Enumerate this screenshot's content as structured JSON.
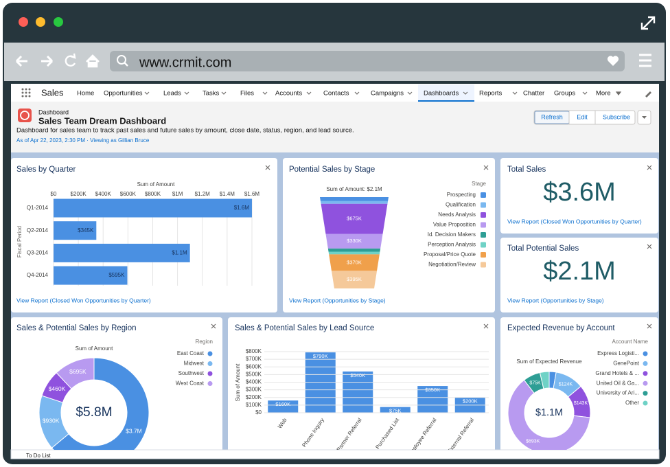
{
  "browser": {
    "url": "www.crmit.com"
  },
  "nav": {
    "app": "Sales",
    "items": [
      "Home",
      "Opportunities",
      "Leads",
      "Tasks",
      "Files",
      "Accounts",
      "Contacts",
      "Campaigns",
      "Dashboards",
      "Reports",
      "Chatter",
      "Groups",
      "More"
    ]
  },
  "header": {
    "label": "Dashboard",
    "title": "Sales Team Dream Dashboard",
    "description": "Dashboard for sales team to track past sales and future sales by amount, close date, status, region, and lead source.",
    "meta": "As of Apr 22, 2023, 2:30 PM · Viewing as Gillian Bruce",
    "buttons": [
      "Refresh",
      "Edit",
      "Subscribe"
    ]
  },
  "widgets": {
    "quarter": {
      "title": "Sales by Quarter",
      "axis_title": "Sum of Amount",
      "y_axis_title": "Fiscal Period",
      "categories": [
        "Q1-2014",
        "Q2-2014",
        "Q3-2014",
        "Q4-2014"
      ],
      "values": [
        1600000,
        345000,
        1100000,
        595000
      ],
      "value_labels": [
        "$1.6M",
        "$345K",
        "$1.1M",
        "$595K"
      ],
      "color": "#4a90e2",
      "xlim": [
        0,
        1650000
      ],
      "xticks": [
        {
          "value": 0,
          "label": "$0"
        },
        {
          "value": 200000,
          "label": "$200K"
        },
        {
          "value": 400000,
          "label": "$400K"
        },
        {
          "value": 600000,
          "label": "$600K"
        },
        {
          "value": 800000,
          "label": "$800K"
        },
        {
          "value": 1000000,
          "label": "$1M"
        },
        {
          "value": 1200000,
          "label": "$1.2M"
        },
        {
          "value": 1400000,
          "label": "$1.4M"
        },
        {
          "value": 1600000,
          "label": "$1.6M"
        }
      ],
      "grid": true,
      "link": "View Report (Closed Won Opportunities by Quarter)"
    },
    "stage": {
      "title": "Potential Sales by Stage",
      "subtitle": "Sum of Amount: $2.1M",
      "legend_title": "Stage",
      "categories": [
        "Prospecting",
        "Qualification",
        "Needs Analysis",
        "Value Proposition",
        "Id. Decision Makers",
        "Perception Analysis",
        "Proposal/Price Quote",
        "Negotiation/Review"
      ],
      "values": [
        90000,
        60000,
        675000,
        330000,
        70000,
        60000,
        370000,
        395000
      ],
      "value_labels": [
        null,
        null,
        "$675K",
        "$330K",
        null,
        null,
        "$370K",
        "$395K"
      ],
      "colors": [
        "#4a90e2",
        "#7ab8f0",
        "#8f52de",
        "#b89af0",
        "#2e9e95",
        "#6fd2c6",
        "#f0a04b",
        "#f5c99a"
      ],
      "link": "View Report (Opportunities by Stage)"
    },
    "total_sales": {
      "title": "Total Sales",
      "value": "$3.6M",
      "link": "View Report (Closed Won Opportunities by Quarter)"
    },
    "total_potential": {
      "title": "Total Potential Sales",
      "value": "$2.1M",
      "link": "View Report (Opportunities by Stage)"
    },
    "region": {
      "title": "Sales & Potential Sales by Region",
      "subtitle": "Sum of Amount",
      "legend_title": "Region",
      "total": "$5.8M",
      "categories": [
        "East Coast",
        "Midwest",
        "Southwest",
        "West Coast"
      ],
      "values": [
        3700000,
        930000,
        460000,
        695000
      ],
      "value_labels": [
        "$3.7M",
        "$930K",
        "$460K",
        "$695K"
      ],
      "colors": [
        "#4a90e2",
        "#7ab8f0",
        "#8f52de",
        "#b89af0"
      ]
    },
    "lead": {
      "title": "Sales & Potential Sales by Lead Source",
      "y_axis_title": "Sum of Amount",
      "categories": [
        "Web",
        "Phone Inquiry",
        "Partner Referral",
        "Purchased List",
        "Employee Referral",
        "External Referral"
      ],
      "values": [
        160000,
        790000,
        540000,
        75000,
        350000,
        200000
      ],
      "value_labels": [
        "$160K",
        "$790K",
        "$540K",
        "$75K",
        "$350K",
        "$200K"
      ],
      "color": "#4a90e2",
      "ylim": [
        0,
        800000
      ],
      "yticks": [
        {
          "value": 0,
          "label": "$0"
        },
        {
          "value": 100000,
          "label": "$100K"
        },
        {
          "value": 200000,
          "label": "$200K"
        },
        {
          "value": 300000,
          "label": "$300K"
        },
        {
          "value": 400000,
          "label": "$400K"
        },
        {
          "value": 500000,
          "label": "$500K"
        },
        {
          "value": 600000,
          "label": "$600K"
        },
        {
          "value": 700000,
          "label": "$700K"
        },
        {
          "value": 800000,
          "label": "$800K"
        }
      ],
      "grid": true
    },
    "account": {
      "title": "Expected Revenue by Account",
      "subtitle": "Sum of Expected Revenue",
      "legend_title": "Account Name",
      "total": "$1.1M",
      "categories": [
        "Express Logisti...",
        "GenePoint",
        "Grand Hotels & ...",
        "United Oil & Ga...",
        "University of Ari...",
        "Other"
      ],
      "values": [
        30000,
        124000,
        143000,
        693000,
        75000,
        40000
      ],
      "value_labels": [
        null,
        "$124K",
        "$143K",
        "$693K",
        "$75K",
        null
      ],
      "colors": [
        "#4a90e2",
        "#7ab8f0",
        "#8f52de",
        "#b89af0",
        "#2e9e95",
        "#6fd2c6"
      ]
    }
  },
  "footer": {
    "todo": "To Do List"
  }
}
